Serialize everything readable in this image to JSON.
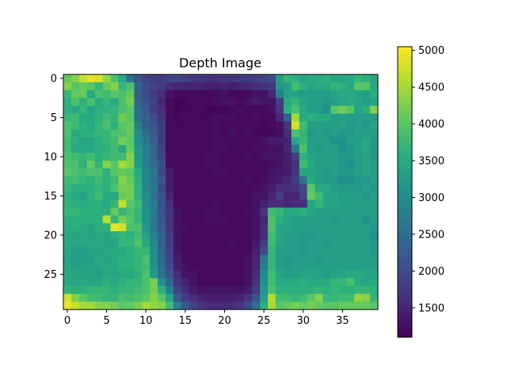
{
  "chart_data": {
    "type": "heatmap",
    "title": "Depth Image",
    "xlabel": "",
    "ylabel": "",
    "rows": 30,
    "cols": 40,
    "x_ticks": [
      0,
      5,
      10,
      15,
      20,
      25,
      30,
      35
    ],
    "y_ticks": [
      0,
      5,
      10,
      15,
      20,
      25
    ],
    "colorbar": {
      "vmin": 1100,
      "vmax": 5050,
      "ticks": [
        1500,
        2000,
        2500,
        3000,
        3500,
        4000,
        4500,
        5000
      ],
      "colormap": "viridis"
    },
    "grid": false,
    "values": [
      [
        4100,
        4300,
        4700,
        4900,
        4800,
        4400,
        3900,
        3500,
        2600,
        2100,
        1900,
        1800,
        1800,
        1900,
        1950,
        1850,
        1750,
        1700,
        1650,
        1650,
        1700,
        1700,
        1750,
        1800,
        1850,
        1900,
        2000,
        3300,
        3700,
        3600,
        3400,
        3500,
        3500,
        3600,
        3400,
        3400,
        3500,
        3700,
        3600,
        3400
      ],
      [
        4300,
        4000,
        4100,
        4000,
        3700,
        4100,
        4300,
        3700,
        3900,
        2400,
        2000,
        1900,
        1800,
        1600,
        1500,
        1500,
        1500,
        1500,
        1400,
        1450,
        1500,
        1400,
        1500,
        1500,
        1600,
        1700,
        1750,
        3200,
        3300,
        3800,
        3600,
        3400,
        3500,
        3500,
        3700,
        3600,
        3500,
        4000,
        4000,
        3500
      ],
      [
        3700,
        4100,
        4100,
        3500,
        3900,
        3800,
        4000,
        3900,
        4100,
        2300,
        2000,
        1800,
        1600,
        1300,
        1200,
        1200,
        1200,
        1200,
        1200,
        1200,
        1300,
        1200,
        1200,
        1200,
        1300,
        1300,
        1500,
        2800,
        3400,
        3400,
        3300,
        3300,
        3300,
        3300,
        3400,
        3500,
        3500,
        3400,
        3300,
        3600
      ],
      [
        3600,
        3900,
        3600,
        3900,
        3500,
        3700,
        3500,
        3900,
        4200,
        2400,
        2100,
        1900,
        1500,
        1200,
        1150,
        1150,
        1200,
        1200,
        1200,
        1250,
        1300,
        1300,
        1200,
        1300,
        1400,
        1300,
        1300,
        1800,
        3500,
        3700,
        3400,
        3300,
        3300,
        3200,
        3300,
        3400,
        3500,
        3400,
        3300,
        3400
      ],
      [
        3600,
        3500,
        3700,
        3400,
        3600,
        3600,
        3700,
        3900,
        4000,
        2500,
        2200,
        1800,
        1600,
        1200,
        1150,
        1200,
        1200,
        1200,
        1150,
        1150,
        1150,
        1200,
        1250,
        1200,
        1200,
        1200,
        1300,
        1700,
        3600,
        3900,
        3500,
        3300,
        3300,
        3100,
        4000,
        4200,
        4000,
        3400,
        3600,
        4300
      ],
      [
        3700,
        3800,
        3500,
        3500,
        3600,
        3800,
        3700,
        4200,
        4000,
        2500,
        2300,
        2000,
        1700,
        1200,
        1150,
        1200,
        1200,
        1200,
        1200,
        1250,
        1250,
        1250,
        1200,
        1200,
        1250,
        1200,
        1200,
        1550,
        2300,
        4500,
        3500,
        3600,
        3500,
        3500,
        3300,
        3300,
        3300,
        3300,
        3300,
        3200
      ],
      [
        3900,
        3800,
        3600,
        3500,
        3700,
        3900,
        3600,
        4000,
        4100,
        2800,
        2300,
        2100,
        1800,
        1200,
        1200,
        1200,
        1200,
        1200,
        1200,
        1250,
        1200,
        1200,
        1200,
        1200,
        1200,
        1150,
        1200,
        1300,
        1700,
        4800,
        3800,
        3300,
        3300,
        3300,
        3300,
        3400,
        3200,
        3300,
        3200,
        3400
      ],
      [
        3900,
        3500,
        3600,
        3600,
        3700,
        3700,
        3900,
        3900,
        4100,
        3000,
        2500,
        2200,
        1800,
        1200,
        1200,
        1200,
        1200,
        1200,
        1200,
        1250,
        1200,
        1300,
        1200,
        1250,
        1200,
        1200,
        1200,
        1250,
        1600,
        3900,
        3700,
        3200,
        3300,
        3200,
        3300,
        3200,
        3200,
        3300,
        3300,
        3300
      ],
      [
        3800,
        3600,
        3400,
        3400,
        3600,
        3700,
        3800,
        4200,
        4000,
        3000,
        2700,
        2300,
        1800,
        1200,
        1200,
        1200,
        1200,
        1200,
        1200,
        1250,
        1250,
        1200,
        1200,
        1200,
        1200,
        1300,
        1400,
        1400,
        1500,
        3400,
        3700,
        3300,
        3300,
        3300,
        3100,
        3100,
        3300,
        3300,
        3500,
        3200
      ],
      [
        3800,
        3500,
        3500,
        3500,
        3600,
        3600,
        3800,
        3500,
        4100,
        3200,
        2800,
        2400,
        1900,
        1200,
        1200,
        1200,
        1200,
        1200,
        1200,
        1250,
        1250,
        1200,
        1200,
        1200,
        1250,
        1250,
        1300,
        1300,
        1500,
        2700,
        3900,
        3300,
        3200,
        3300,
        3300,
        3100,
        3200,
        3300,
        3400,
        3200
      ],
      [
        3900,
        3800,
        3700,
        3800,
        3600,
        3700,
        3800,
        3800,
        4300,
        3200,
        2800,
        2400,
        1900,
        1200,
        1200,
        1200,
        1200,
        1200,
        1250,
        1250,
        1200,
        1200,
        1200,
        1250,
        1200,
        1300,
        1300,
        1300,
        1400,
        1800,
        3600,
        3400,
        3300,
        3300,
        3300,
        3200,
        3200,
        3300,
        3400,
        3200
      ],
      [
        3900,
        3900,
        3600,
        4100,
        3700,
        4300,
        4000,
        4500,
        4300,
        3300,
        2800,
        2500,
        2000,
        1200,
        1200,
        1200,
        1200,
        1200,
        1250,
        1250,
        1200,
        1200,
        1200,
        1200,
        1200,
        1200,
        1250,
        1300,
        1450,
        1650,
        3800,
        3500,
        3300,
        3300,
        3300,
        3200,
        3100,
        3300,
        3400,
        3300
      ],
      [
        4000,
        3900,
        3800,
        3900,
        3900,
        3600,
        4000,
        4100,
        4000,
        3500,
        2900,
        2600,
        2000,
        1400,
        1200,
        1200,
        1200,
        1200,
        1200,
        1250,
        1250,
        1200,
        1200,
        1200,
        1200,
        1200,
        1300,
        1350,
        1400,
        1700,
        3400,
        3400,
        3300,
        3200,
        3300,
        3200,
        3200,
        3300,
        3400,
        3300
      ],
      [
        3800,
        3800,
        3700,
        3600,
        3800,
        3600,
        3800,
        4300,
        4100,
        3600,
        2900,
        2600,
        2100,
        1400,
        1200,
        1200,
        1200,
        1200,
        1200,
        1200,
        1200,
        1200,
        1200,
        1250,
        1200,
        1250,
        1350,
        1400,
        1550,
        1800,
        2600,
        3500,
        3300,
        3200,
        3200,
        3100,
        3100,
        3200,
        3200,
        3300
      ],
      [
        3700,
        3600,
        3600,
        3600,
        3700,
        3600,
        3900,
        4200,
        4200,
        3600,
        2900,
        2700,
        2000,
        1400,
        1200,
        1200,
        1200,
        1200,
        1200,
        1200,
        1200,
        1200,
        1200,
        1200,
        1250,
        1300,
        1400,
        1600,
        1600,
        1650,
        1900,
        4000,
        3500,
        3500,
        3300,
        3200,
        3200,
        3200,
        3300,
        3200
      ],
      [
        3600,
        3500,
        3400,
        3600,
        3800,
        3500,
        3500,
        4100,
        4200,
        3600,
        3000,
        2600,
        2100,
        1500,
        1200,
        1200,
        1200,
        1200,
        1200,
        1200,
        1200,
        1200,
        1200,
        1200,
        1300,
        1300,
        1500,
        1800,
        1500,
        1500,
        1900,
        4100,
        3800,
        3400,
        3400,
        3300,
        3300,
        3300,
        3200,
        3300
      ],
      [
        3700,
        3600,
        3500,
        3600,
        3600,
        3500,
        3700,
        4700,
        4000,
        3800,
        3000,
        2700,
        2100,
        1600,
        1200,
        1200,
        1200,
        1200,
        1200,
        1250,
        1200,
        1200,
        1200,
        1200,
        1300,
        1450,
        1600,
        1600,
        1500,
        1600,
        1600,
        3400,
        3700,
        3400,
        3400,
        3300,
        3300,
        3300,
        3300,
        3300
      ],
      [
        3700,
        3700,
        3600,
        3600,
        3600,
        3600,
        4100,
        3700,
        3900,
        3700,
        3100,
        2700,
        2100,
        1700,
        1300,
        1200,
        1200,
        1200,
        1250,
        1250,
        1200,
        1200,
        1200,
        1250,
        1300,
        1700,
        3800,
        3700,
        3500,
        3500,
        3600,
        3400,
        3300,
        3300,
        3300,
        3300,
        3300,
        3300,
        3300,
        3300
      ],
      [
        3600,
        3600,
        3600,
        3600,
        3600,
        4600,
        3700,
        4200,
        4000,
        3700,
        3100,
        2700,
        2200,
        1700,
        1300,
        1200,
        1200,
        1200,
        1250,
        1250,
        1250,
        1200,
        1200,
        1200,
        1300,
        1500,
        3900,
        3600,
        3400,
        3300,
        3300,
        3300,
        3300,
        3300,
        3200,
        3300,
        3300,
        3300,
        3100,
        3300
      ],
      [
        3500,
        3600,
        3500,
        3400,
        3600,
        3600,
        4900,
        4800,
        3900,
        3900,
        3200,
        2700,
        2200,
        1700,
        1300,
        1250,
        1200,
        1200,
        1200,
        1200,
        1200,
        1200,
        1200,
        1200,
        1300,
        1600,
        3900,
        3400,
        3400,
        3300,
        3300,
        3300,
        3300,
        3300,
        3300,
        3300,
        3300,
        3300,
        3300,
        3200
      ],
      [
        3500,
        3400,
        3500,
        3400,
        3500,
        3400,
        3600,
        3700,
        3600,
        3800,
        3300,
        2800,
        2300,
        1800,
        1300,
        1200,
        1200,
        1200,
        1200,
        1200,
        1200,
        1200,
        1200,
        1200,
        1300,
        1600,
        3800,
        3400,
        3300,
        3300,
        3200,
        3200,
        3300,
        3300,
        3300,
        3300,
        3300,
        3300,
        3300,
        3100
      ],
      [
        3500,
        3400,
        3400,
        3500,
        3500,
        3400,
        3400,
        3700,
        3700,
        3900,
        3500,
        2900,
        2300,
        1800,
        1300,
        1200,
        1200,
        1200,
        1200,
        1200,
        1200,
        1250,
        1200,
        1200,
        1350,
        1800,
        3800,
        3400,
        3300,
        3300,
        3200,
        3300,
        3300,
        3200,
        3300,
        3300,
        3300,
        3300,
        3300,
        3200
      ],
      [
        3500,
        3300,
        3300,
        3400,
        3400,
        3500,
        3500,
        3500,
        3600,
        3700,
        3700,
        3000,
        2400,
        1900,
        1300,
        1200,
        1200,
        1200,
        1200,
        1200,
        1200,
        1200,
        1200,
        1200,
        1400,
        2000,
        3700,
        3300,
        3300,
        3300,
        3200,
        3300,
        3300,
        3300,
        3300,
        3300,
        3300,
        3300,
        3300,
        3200
      ],
      [
        3400,
        3300,
        3300,
        3300,
        3500,
        3400,
        3500,
        3600,
        3600,
        3700,
        3900,
        3000,
        2400,
        1900,
        1400,
        1200,
        1200,
        1200,
        1200,
        1200,
        1200,
        1200,
        1200,
        1300,
        1500,
        2600,
        3700,
        3300,
        3200,
        3300,
        3300,
        3300,
        3200,
        3300,
        3300,
        3300,
        3300,
        3300,
        3300,
        3300
      ],
      [
        3500,
        3300,
        3300,
        3400,
        3400,
        3500,
        3500,
        3600,
        3600,
        3700,
        3800,
        3100,
        2500,
        2000,
        1400,
        1300,
        1200,
        1200,
        1200,
        1200,
        1200,
        1200,
        1200,
        1300,
        1500,
        2800,
        3700,
        3300,
        3200,
        3300,
        3300,
        3300,
        3300,
        3300,
        3300,
        3300,
        3300,
        3300,
        3300,
        3300
      ],
      [
        3500,
        3400,
        3400,
        3400,
        3300,
        3500,
        3400,
        3500,
        3500,
        3600,
        3900,
        3200,
        2600,
        2100,
        1600,
        1300,
        1300,
        1200,
        1200,
        1200,
        1200,
        1200,
        1200,
        1300,
        1600,
        3000,
        3800,
        3400,
        3300,
        3300,
        3400,
        3400,
        3400,
        3300,
        3400,
        3400,
        3500,
        3500,
        3400,
        3400
      ],
      [
        3500,
        3400,
        3500,
        3400,
        3400,
        3600,
        3500,
        3600,
        3700,
        3700,
        3900,
        4200,
        3000,
        2400,
        1700,
        1500,
        1300,
        1200,
        1200,
        1200,
        1200,
        1200,
        1200,
        1300,
        1700,
        3100,
        3800,
        3500,
        3500,
        3500,
        3600,
        3500,
        3500,
        3500,
        3700,
        3700,
        3900,
        3500,
        3400,
        3500
      ],
      [
        3700,
        3600,
        3600,
        3700,
        3700,
        3700,
        3600,
        3700,
        3700,
        3800,
        3900,
        4200,
        3600,
        2800,
        1900,
        1600,
        1400,
        1300,
        1300,
        1300,
        1300,
        1300,
        1300,
        1400,
        1800,
        3200,
        3900,
        3600,
        3600,
        3600,
        3600,
        3600,
        3700,
        3600,
        3700,
        3600,
        3600,
        3700,
        3700,
        3600
      ],
      [
        4800,
        4300,
        4000,
        3800,
        3800,
        3700,
        3700,
        3900,
        3800,
        3900,
        4000,
        4300,
        4000,
        3400,
        2200,
        1800,
        1600,
        1500,
        1400,
        1400,
        1400,
        1400,
        1500,
        1700,
        2100,
        3300,
        4600,
        3800,
        3800,
        3700,
        3800,
        4000,
        4300,
        3700,
        3700,
        3800,
        3800,
        4400,
        4300,
        3700
      ],
      [
        4900,
        4700,
        4500,
        4500,
        4300,
        4300,
        4200,
        4000,
        4100,
        4200,
        4500,
        4400,
        4300,
        3800,
        2800,
        2200,
        1900,
        1700,
        1600,
        1600,
        1600,
        1600,
        1700,
        2000,
        2600,
        3600,
        4500,
        4000,
        4100,
        4200,
        4100,
        4200,
        4100,
        4000,
        4000,
        4100,
        4100,
        4100,
        4100,
        4000
      ]
    ]
  }
}
